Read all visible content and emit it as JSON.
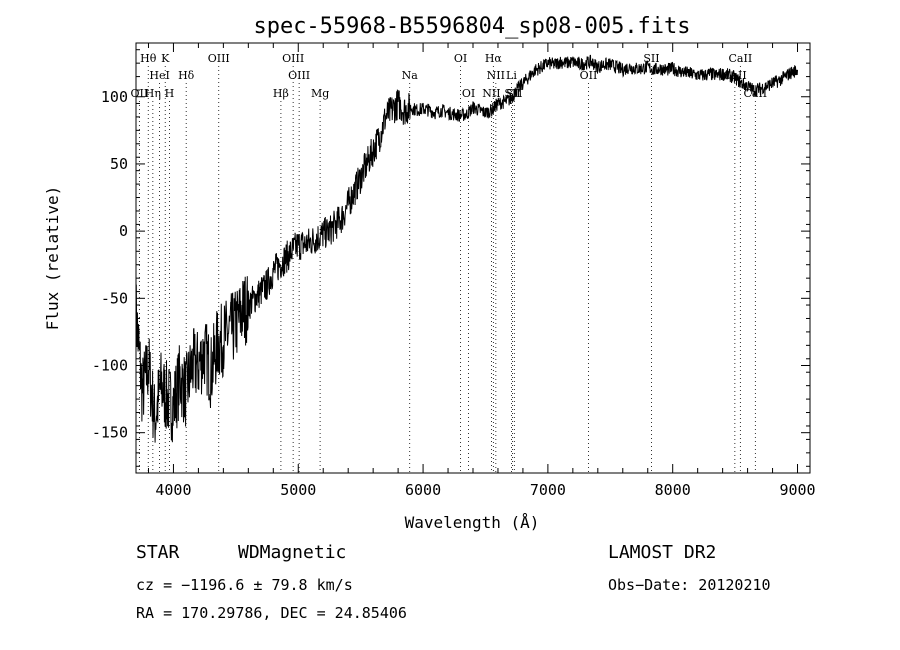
{
  "chart_data": {
    "type": "line",
    "title": "spec-55968-B5596804_sp08-005.fits",
    "xlabel": "Wavelength (Å)",
    "ylabel": "Flux (relative)",
    "xlim": [
      3700,
      9100
    ],
    "ylim": [
      -180,
      140
    ],
    "xticks": [
      4000,
      5000,
      6000,
      7000,
      8000,
      9000
    ],
    "yticks": [
      -150,
      -100,
      -50,
      0,
      50,
      100
    ],
    "grid": false,
    "legend": "none",
    "series": [
      {
        "color": "#000000",
        "x": [
          3700,
          3750,
          3800,
          3850,
          3900,
          3950,
          4000,
          4050,
          4100,
          4150,
          4200,
          4250,
          4300,
          4350,
          4400,
          4450,
          4500,
          4550,
          4600,
          4650,
          4700,
          4750,
          4800,
          4850,
          4900,
          4950,
          5000,
          5050,
          5100,
          5150,
          5200,
          5250,
          5300,
          5350,
          5400,
          5450,
          5500,
          5550,
          5600,
          5650,
          5700,
          5750,
          5800,
          5850,
          5900,
          5950,
          6000,
          6050,
          6100,
          6150,
          6200,
          6250,
          6300,
          6350,
          6400,
          6450,
          6500,
          6550,
          6600,
          6650,
          6700,
          6750,
          6800,
          6850,
          6900,
          6950,
          7000,
          7050,
          7100,
          7150,
          7200,
          7250,
          7300,
          7350,
          7400,
          7450,
          7500,
          7550,
          7600,
          7650,
          7700,
          7750,
          7800,
          7850,
          7900,
          7950,
          8000,
          8050,
          8100,
          8150,
          8200,
          8250,
          8300,
          8350,
          8400,
          8450,
          8500,
          8550,
          8600,
          8650,
          8700,
          8750,
          8800,
          8850,
          8900,
          8950,
          9000
        ],
        "y": [
          -60,
          -120,
          -100,
          -140,
          -115,
          -125,
          -130,
          -110,
          -120,
          -100,
          -100,
          -90,
          -105,
          -85,
          -80,
          -75,
          -70,
          -60,
          -55,
          -50,
          -45,
          -40,
          -30,
          -25,
          -20,
          -15,
          -10,
          -10,
          -8,
          -5,
          -2,
          0,
          5,
          10,
          20,
          30,
          40,
          50,
          60,
          70,
          85,
          90,
          95,
          90,
          92,
          90,
          91,
          90,
          88,
          90,
          88,
          87,
          86,
          87,
          92,
          90,
          88,
          90,
          95,
          96,
          98,
          105,
          110,
          115,
          120,
          122,
          125,
          124,
          126,
          125,
          126,
          124,
          125,
          126,
          122,
          124,
          124,
          122,
          120,
          122,
          121,
          121,
          122,
          120,
          121,
          120,
          121,
          119,
          118,
          117,
          116,
          116,
          117,
          116,
          117,
          116,
          114,
          110,
          108,
          105,
          106,
          108,
          110,
          112,
          115,
          118,
          120
        ]
      }
    ],
    "lines_top": [
      {
        "label": "Hθ",
        "x": 3798
      },
      {
        "label": "K",
        "x": 3934
      },
      {
        "label": "OIII",
        "x": 4363
      },
      {
        "label": "OIII",
        "x": 4959
      },
      {
        "label": "OI",
        "x": 6300
      },
      {
        "label": "Hα",
        "x": 6563
      },
      {
        "label": "SII",
        "x": 7830
      },
      {
        "label": "CaII",
        "x": 8542
      }
    ],
    "lines_mid": [
      {
        "label": "HeI",
        "x": 3889
      },
      {
        "label": "Hδ",
        "x": 4102
      },
      {
        "label": "OIII",
        "x": 5007
      },
      {
        "label": "Na",
        "x": 5893
      },
      {
        "label": "NII",
        "x": 6583
      },
      {
        "label": "Li",
        "x": 6708
      },
      {
        "label": "OII",
        "x": 7325
      },
      {
        "label": "CaII",
        "x": 8498
      }
    ],
    "lines_low": [
      {
        "label": "OII",
        "x": 3727
      },
      {
        "label": "Hη",
        "x": 3835
      },
      {
        "label": "H",
        "x": 3968
      },
      {
        "label": "Hβ",
        "x": 4861
      },
      {
        "label": "Mg",
        "x": 5175
      },
      {
        "label": "OI",
        "x": 6364
      },
      {
        "label": "NII",
        "x": 6548
      },
      {
        "label": "SII",
        "x": 6716
      },
      {
        "label": "SII",
        "x": 6731
      },
      {
        "label": "CaII",
        "x": 8662
      }
    ]
  },
  "footer": {
    "obj_class": "STAR",
    "subclass": "WDMagnetic",
    "survey": "LAMOST DR2",
    "cz": "cz = −1196.6 ± 79.8 km/s",
    "obs_date": "Obs−Date: 20120210",
    "radec": "RA = 170.29786, DEC =  24.85406"
  }
}
